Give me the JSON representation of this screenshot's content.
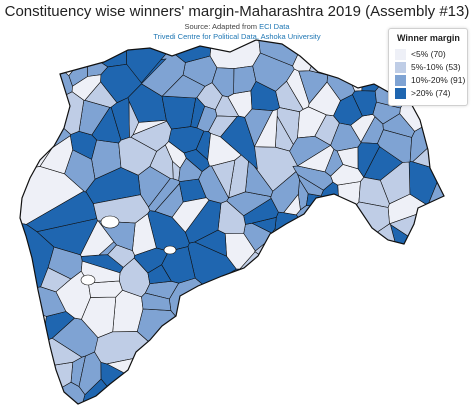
{
  "title": "Constituency wise winners' margin-Maharashtra 2019 (Assembly #13)",
  "source": {
    "prefix": "Source: Adapted from ",
    "link": "ECI Data",
    "credit": "Trivedi Centre for Political Data, Ashoka University"
  },
  "legend": {
    "title": "Winner margin",
    "items": [
      {
        "label": "<5% (70)",
        "color": "#eef0f7"
      },
      {
        "label": "5%-10% (53)",
        "color": "#bfcde6"
      },
      {
        "label": "10%-20% (91)",
        "color": "#7fa3d3"
      },
      {
        "label": ">20% (74)",
        "color": "#1f66b0"
      }
    ]
  },
  "map": {
    "constituency_count": 288,
    "border_color": "#111111"
  }
}
